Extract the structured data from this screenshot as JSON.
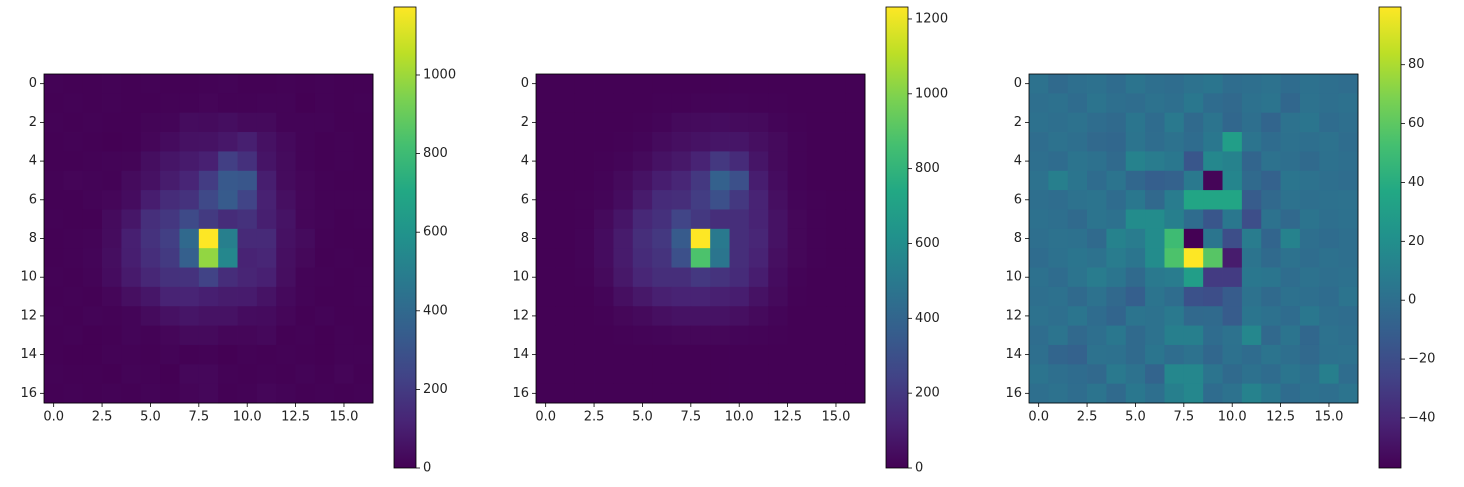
{
  "chart_data": [
    {
      "type": "heatmap",
      "colormap": "viridis",
      "xlim": [
        -0.5,
        16.5
      ],
      "ylim": [
        16.5,
        -0.5
      ],
      "xticks": [
        {
          "value": 0,
          "label": "0.0"
        },
        {
          "value": 2.5,
          "label": "2.5"
        },
        {
          "value": 5,
          "label": "5.0"
        },
        {
          "value": 7.5,
          "label": "7.5"
        },
        {
          "value": 10,
          "label": "10.0"
        },
        {
          "value": 12.5,
          "label": "12.5"
        },
        {
          "value": 15,
          "label": "15.0"
        }
      ],
      "yticks": [
        0,
        2,
        4,
        6,
        8,
        10,
        12,
        14,
        16
      ],
      "clim": [
        0,
        1173
      ],
      "cticks": [
        0,
        200,
        400,
        600,
        800,
        1000
      ],
      "z": [
        [
          7,
          2,
          5,
          6,
          3,
          8,
          5,
          4,
          7,
          9,
          4,
          5,
          7,
          3,
          6,
          5,
          4
        ],
        [
          5,
          6,
          3,
          8,
          5,
          4,
          8,
          8,
          15,
          8,
          6,
          9,
          9,
          0,
          7,
          5,
          6
        ],
        [
          6,
          5,
          7,
          4,
          2,
          12,
          13,
          36,
          32,
          43,
          30,
          30,
          9,
          10,
          9,
          3,
          5
        ],
        [
          4,
          7,
          5,
          1,
          3,
          18,
          34,
          52,
          58,
          75,
          100,
          53,
          28,
          11,
          5,
          7,
          4
        ],
        [
          5,
          3,
          8,
          9,
          12,
          42,
          68,
          85,
          105,
          215,
          162,
          64,
          32,
          10,
          2,
          6,
          5
        ],
        [
          7,
          15,
          9,
          8,
          33,
          55,
          90,
          122,
          206,
          325,
          314,
          97,
          32,
          16,
          7,
          5,
          4
        ],
        [
          5,
          4,
          10,
          18,
          38,
          95,
          146,
          168,
          255,
          335,
          235,
          108,
          46,
          17,
          6,
          6,
          7
        ],
        [
          6,
          5,
          5,
          33,
          71,
          158,
          188,
          260,
          198,
          145,
          165,
          100,
          62,
          16,
          9,
          5,
          6
        ],
        [
          5,
          7,
          11,
          37,
          102,
          168,
          218,
          400,
          1175,
          504,
          140,
          138,
          54,
          32,
          6,
          3,
          5
        ],
        [
          3,
          6,
          14,
          42,
          98,
          154,
          198,
          355,
          980,
          538,
          115,
          123,
          47,
          22,
          5,
          6,
          5
        ],
        [
          6,
          3,
          11,
          38,
          84,
          127,
          166,
          168,
          230,
          150,
          120,
          105,
          44,
          9,
          7,
          5,
          6
        ],
        [
          5,
          6,
          2,
          17,
          46,
          70,
          113,
          119,
          102,
          90,
          88,
          62,
          27,
          9,
          5,
          3,
          8
        ],
        [
          7,
          5,
          9,
          6,
          14,
          33,
          52,
          66,
          56,
          57,
          38,
          34,
          16,
          3,
          10,
          5,
          4
        ],
        [
          4,
          8,
          1,
          5,
          13,
          7,
          17,
          30,
          30,
          18,
          17,
          25,
          4,
          8,
          0,
          7,
          5
        ],
        [
          5,
          0,
          0,
          7,
          6,
          2,
          9,
          4,
          7,
          0,
          6,
          3,
          8,
          5,
          1,
          6,
          7
        ],
        [
          8,
          5,
          3,
          1,
          11,
          7,
          0,
          20,
          20,
          8,
          2,
          6,
          3,
          9,
          5,
          15,
          4
        ],
        [
          5,
          7,
          4,
          8,
          2,
          10,
          5,
          15,
          20,
          3,
          7,
          17,
          10,
          3,
          6,
          5,
          8
        ]
      ]
    },
    {
      "type": "heatmap",
      "colormap": "viridis",
      "xlim": [
        -0.5,
        16.5
      ],
      "ylim": [
        16.5,
        -0.5
      ],
      "xticks": [
        {
          "value": 0,
          "label": "0.0"
        },
        {
          "value": 2.5,
          "label": "2.5"
        },
        {
          "value": 5,
          "label": "5.0"
        },
        {
          "value": 7.5,
          "label": "7.5"
        },
        {
          "value": 10,
          "label": "10.0"
        },
        {
          "value": 12.5,
          "label": "12.5"
        },
        {
          "value": 15,
          "label": "15.0"
        }
      ],
      "yticks": [
        0,
        2,
        4,
        6,
        8,
        10,
        12,
        14,
        16
      ],
      "clim": [
        0,
        1232
      ],
      "cticks": [
        0,
        200,
        400,
        600,
        800,
        1000,
        1200
      ],
      "z": [
        [
          5,
          5,
          5,
          5,
          5,
          5,
          5,
          5,
          5,
          5,
          5,
          5,
          5,
          5,
          5,
          5,
          5
        ],
        [
          5,
          5,
          5,
          5,
          5,
          5,
          6,
          8,
          10,
          10,
          10,
          8,
          6,
          5,
          5,
          5,
          5
        ],
        [
          5,
          5,
          5,
          5,
          5,
          8,
          15,
          30,
          35,
          40,
          35,
          30,
          15,
          8,
          5,
          5,
          5
        ],
        [
          5,
          5,
          5,
          5,
          8,
          15,
          35,
          50,
          60,
          70,
          70,
          50,
          30,
          10,
          5,
          5,
          5
        ],
        [
          5,
          5,
          5,
          8,
          15,
          30,
          60,
          80,
          120,
          200,
          150,
          70,
          30,
          10,
          5,
          5,
          5
        ],
        [
          5,
          5,
          5,
          10,
          30,
          60,
          100,
          130,
          200,
          380,
          300,
          100,
          40,
          12,
          5,
          5,
          5
        ],
        [
          5,
          5,
          8,
          15,
          40,
          90,
          150,
          160,
          220,
          300,
          200,
          120,
          50,
          15,
          6,
          5,
          5
        ],
        [
          5,
          5,
          8,
          30,
          70,
          140,
          170,
          250,
          200,
          160,
          160,
          120,
          60,
          20,
          6,
          5,
          5
        ],
        [
          5,
          5,
          10,
          40,
          90,
          160,
          200,
          350,
          1232,
          500,
          160,
          130,
          60,
          20,
          6,
          5,
          5
        ],
        [
          5,
          5,
          10,
          40,
          90,
          150,
          180,
          300,
          880,
          480,
          160,
          120,
          50,
          20,
          6,
          5,
          5
        ],
        [
          5,
          5,
          8,
          30,
          80,
          130,
          160,
          160,
          200,
          180,
          150,
          100,
          40,
          10,
          5,
          5,
          5
        ],
        [
          5,
          5,
          5,
          15,
          50,
          80,
          110,
          120,
          120,
          110,
          100,
          60,
          30,
          8,
          5,
          5,
          5
        ],
        [
          5,
          5,
          5,
          8,
          20,
          30,
          50,
          60,
          60,
          60,
          50,
          30,
          15,
          5,
          5,
          5,
          5
        ],
        [
          5,
          5,
          5,
          5,
          8,
          10,
          15,
          20,
          20,
          20,
          15,
          10,
          8,
          5,
          5,
          5,
          5
        ],
        [
          5,
          5,
          5,
          5,
          5,
          5,
          5,
          5,
          5,
          5,
          5,
          5,
          5,
          5,
          5,
          5,
          5
        ],
        [
          5,
          5,
          5,
          5,
          5,
          5,
          5,
          5,
          5,
          5,
          5,
          5,
          5,
          5,
          5,
          5,
          5
        ],
        [
          5,
          5,
          5,
          5,
          5,
          5,
          5,
          5,
          5,
          5,
          5,
          5,
          5,
          5,
          5,
          5,
          5
        ]
      ]
    },
    {
      "type": "heatmap",
      "colormap": "viridis",
      "xlim": [
        -0.5,
        16.5
      ],
      "ylim": [
        16.5,
        -0.5
      ],
      "xticks": [
        {
          "value": 0,
          "label": "0.0"
        },
        {
          "value": 2.5,
          "label": "2.5"
        },
        {
          "value": 5,
          "label": "5.0"
        },
        {
          "value": 7.5,
          "label": "7.5"
        },
        {
          "value": 10,
          "label": "10.0"
        },
        {
          "value": 12.5,
          "label": "12.5"
        },
        {
          "value": 15,
          "label": "15.0"
        }
      ],
      "yticks": [
        0,
        2,
        4,
        6,
        8,
        10,
        12,
        14,
        16
      ],
      "clim": [
        -57,
        99.6
      ],
      "cticks": [
        {
          "value": -40,
          "label": "−40"
        },
        {
          "value": -20,
          "label": "−20"
        },
        0,
        20,
        40,
        60,
        80
      ],
      "z": [
        [
          2,
          -3,
          0,
          1,
          -2,
          3,
          0,
          -1,
          2,
          4,
          -1,
          0,
          2,
          -2,
          1,
          0,
          -1
        ],
        [
          0,
          1,
          -2,
          3,
          0,
          -1,
          2,
          0,
          5,
          -2,
          -4,
          1,
          3,
          -5,
          2,
          0,
          1
        ],
        [
          1,
          0,
          2,
          -1,
          -3,
          4,
          -2,
          6,
          -3,
          3,
          -5,
          0,
          -6,
          2,
          4,
          -2,
          0
        ],
        [
          -1,
          2,
          0,
          -4,
          -5,
          3,
          -1,
          2,
          -2,
          5,
          30,
          3,
          -2,
          1,
          0,
          2,
          -1
        ],
        [
          0,
          -2,
          3,
          1,
          -3,
          12,
          8,
          5,
          -15,
          15,
          12,
          -6,
          2,
          0,
          -3,
          1,
          0
        ],
        [
          2,
          10,
          4,
          -2,
          3,
          -5,
          -10,
          -8,
          6,
          -55,
          14,
          -3,
          -8,
          4,
          2,
          0,
          -1
        ],
        [
          0,
          -1,
          2,
          3,
          -2,
          5,
          -4,
          8,
          35,
          35,
          35,
          -12,
          -4,
          2,
          0,
          1,
          2
        ],
        [
          1,
          0,
          -3,
          3,
          1,
          18,
          18,
          10,
          -2,
          -15,
          5,
          -20,
          2,
          -4,
          3,
          0,
          1
        ],
        [
          0,
          2,
          1,
          -3,
          12,
          8,
          18,
          50,
          -57,
          4,
          -20,
          8,
          -6,
          12,
          0,
          -2,
          0
        ],
        [
          -2,
          1,
          4,
          2,
          8,
          4,
          18,
          55,
          99.6,
          58,
          -45,
          3,
          -3,
          2,
          -1,
          1,
          0
        ],
        [
          1,
          -2,
          3,
          8,
          4,
          -3,
          6,
          8,
          30,
          -30,
          -30,
          5,
          4,
          -1,
          2,
          0,
          1
        ],
        [
          0,
          1,
          -3,
          2,
          -4,
          -10,
          3,
          -1,
          -18,
          -20,
          -12,
          2,
          -3,
          1,
          0,
          -2,
          3
        ],
        [
          2,
          0,
          4,
          -2,
          -6,
          3,
          2,
          6,
          -4,
          -3,
          -12,
          4,
          1,
          -2,
          5,
          0,
          -1
        ],
        [
          -1,
          3,
          -4,
          0,
          5,
          -3,
          2,
          10,
          10,
          -2,
          2,
          15,
          -4,
          3,
          -5,
          2,
          0
        ],
        [
          0,
          -6,
          -8,
          2,
          1,
          -3,
          4,
          -1,
          2,
          -5,
          1,
          -2,
          3,
          0,
          -4,
          1,
          2
        ],
        [
          3,
          0,
          -2,
          -4,
          6,
          2,
          -7,
          15,
          15,
          3,
          -3,
          1,
          -2,
          4,
          0,
          10,
          -1
        ],
        [
          0,
          2,
          -1,
          3,
          -3,
          5,
          0,
          10,
          15,
          -2,
          2,
          12,
          5,
          -2,
          1,
          0,
          3
        ]
      ]
    }
  ]
}
